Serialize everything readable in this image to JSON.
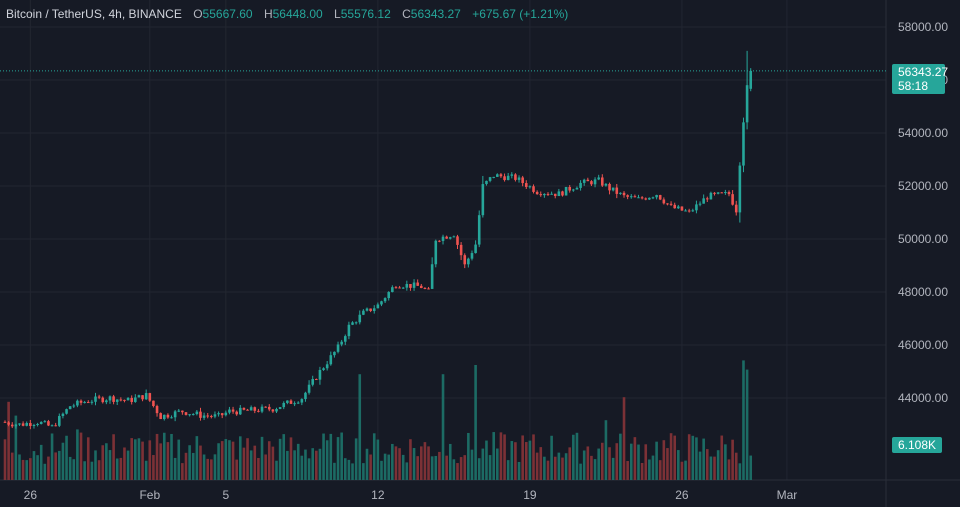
{
  "legend": {
    "symbol": "Bitcoin / TetherUS, 4h, BINANCE",
    "open_key": "O",
    "open": "55667.60",
    "high_key": "H",
    "high": "56448.00",
    "low_key": "L",
    "low": "55576.12",
    "close_key": "C",
    "close": "56343.27",
    "change": "+675.67 (+1.21%)"
  },
  "price_tag": {
    "value": "56343.27",
    "countdown": "58:18"
  },
  "volume_tag": {
    "value": "6.108K"
  },
  "colors": {
    "up": "#26a69a",
    "down": "#ef5350",
    "background": "#161a25",
    "grid": "#222631",
    "text": "#b2b5be"
  },
  "chart_data": {
    "type": "candlestick",
    "interval": "4h",
    "y_axis": {
      "ticks": [
        44000,
        46000,
        48000,
        50000,
        52000,
        54000,
        56000,
        58000
      ],
      "tick_labels": [
        "44000.00",
        "46000.00",
        "48000.00",
        "50000.00",
        "52000.00",
        "54000.00",
        "56000.00",
        "58000.00"
      ],
      "range": [
        42800,
        58900
      ]
    },
    "x_axis": {
      "tick_labels": [
        "26",
        "Feb",
        "5",
        "12",
        "19",
        "26",
        "Mar"
      ],
      "tick_bar_index": [
        7,
        40,
        61,
        103,
        145,
        187,
        216
      ],
      "bar_count": 207
    },
    "grid": true,
    "last_price": 56343.27,
    "price_path": [
      [
        0,
        43100
      ],
      [
        5,
        43000
      ],
      [
        10,
        43100
      ],
      [
        14,
        42900
      ],
      [
        19,
        43700
      ],
      [
        24,
        43900
      ],
      [
        30,
        44000
      ],
      [
        35,
        43900
      ],
      [
        40,
        44100
      ],
      [
        44,
        43300
      ],
      [
        50,
        43500
      ],
      [
        55,
        43350
      ],
      [
        60,
        43300
      ],
      [
        63,
        43500
      ],
      [
        66,
        43500
      ],
      [
        75,
        43600
      ],
      [
        83,
        44000
      ],
      [
        88,
        45000
      ],
      [
        93,
        45900
      ],
      [
        96,
        46700
      ],
      [
        100,
        47200
      ],
      [
        104,
        47500
      ],
      [
        109,
        48300
      ],
      [
        116,
        48200
      ],
      [
        118,
        48000
      ],
      [
        120,
        50000
      ],
      [
        125,
        50200
      ],
      [
        128,
        49000
      ],
      [
        131,
        49800
      ],
      [
        133,
        52000
      ],
      [
        136,
        52400
      ],
      [
        142,
        52300
      ],
      [
        148,
        51800
      ],
      [
        154,
        51700
      ],
      [
        160,
        52100
      ],
      [
        165,
        52200
      ],
      [
        168,
        51900
      ],
      [
        172,
        51600
      ],
      [
        176,
        51500
      ],
      [
        181,
        51700
      ],
      [
        185,
        51200
      ],
      [
        190,
        51000
      ],
      [
        195,
        51600
      ],
      [
        201,
        51700
      ],
      [
        203,
        51100
      ],
      [
        204,
        52900
      ],
      [
        205,
        54500
      ],
      [
        206,
        55700
      ]
    ],
    "last_candle": {
      "open": 55667.6,
      "high": 56448.0,
      "low": 55576.12,
      "close": 56343.27
    },
    "volume": {
      "last": 6108,
      "spikes": [
        {
          "bar": 1,
          "v": 1.7
        },
        {
          "bar": 3,
          "v": 1.4
        },
        {
          "bar": 20,
          "v": 1.1
        },
        {
          "bar": 98,
          "v": 2.3
        },
        {
          "bar": 121,
          "v": 2.3
        },
        {
          "bar": 130,
          "v": 2.5
        },
        {
          "bar": 166,
          "v": 1.3
        },
        {
          "bar": 171,
          "v": 1.8
        },
        {
          "bar": 204,
          "v": 2.6
        },
        {
          "bar": 205,
          "v": 2.4
        }
      ]
    }
  }
}
